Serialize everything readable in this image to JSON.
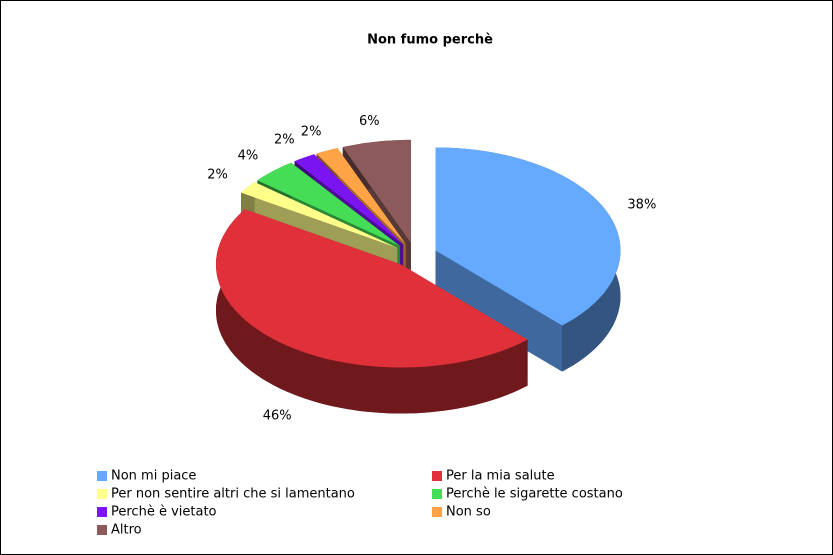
{
  "chart_data": {
    "type": "pie",
    "title": "Non fumo perchè",
    "categories": [
      "Non mi piace",
      "Per la mia salute",
      "Per non sentire altri che si lamentano",
      "Perchè le sigarette costano",
      "Perchè è vietato",
      "Non so",
      "Altro"
    ],
    "values": [
      38,
      46,
      2,
      4,
      2,
      2,
      6
    ],
    "value_labels": [
      "38%",
      "46%",
      "2%",
      "4%",
      "2%",
      "2%",
      "6%"
    ],
    "colors": [
      "#66aaff",
      "#e0313a",
      "#ffff8a",
      "#44dd55",
      "#7a14f0",
      "#ffa347",
      "#8c5a5a"
    ],
    "legend": "bottom"
  }
}
